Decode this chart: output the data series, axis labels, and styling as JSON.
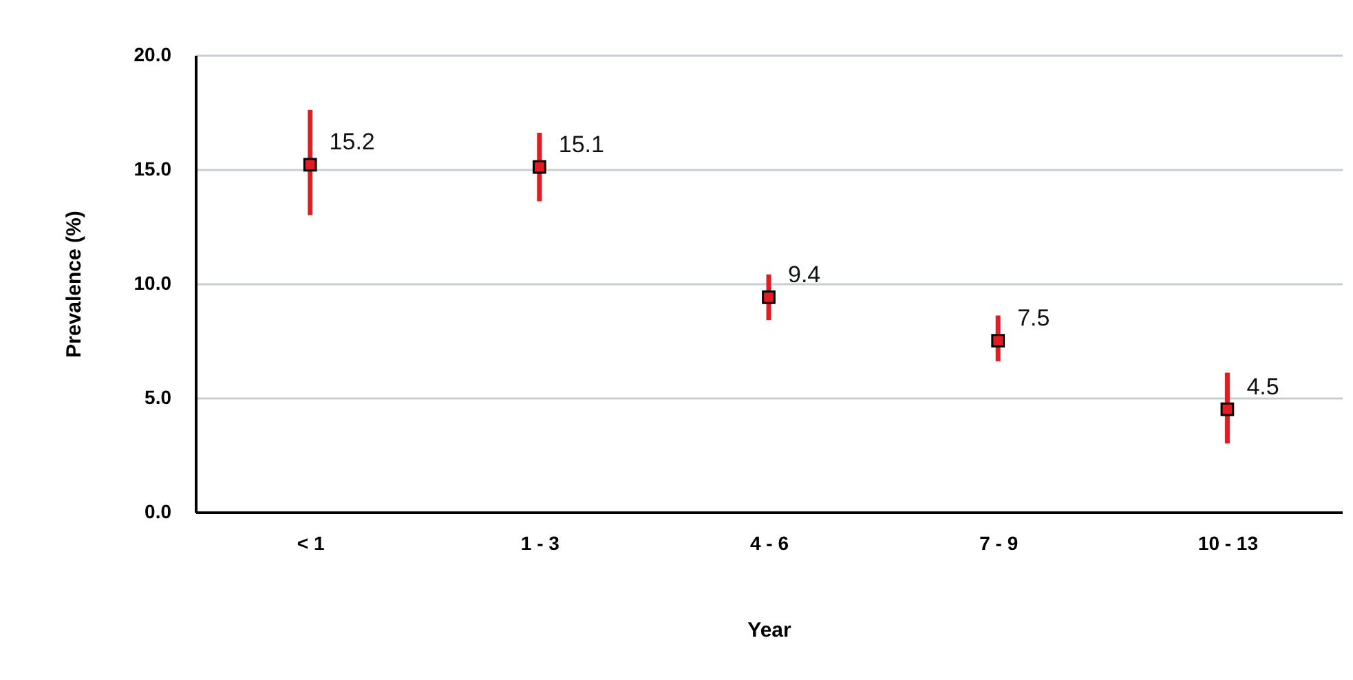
{
  "chart_data": {
    "type": "scatter",
    "xlabel": "Year",
    "ylabel": "Prevalence (%)",
    "categories": [
      "< 1",
      "1 - 3",
      "4 - 6",
      "7 - 9",
      "10 - 13"
    ],
    "values": [
      15.2,
      15.1,
      9.4,
      7.5,
      4.5
    ],
    "errors": [
      [
        13.0,
        17.6
      ],
      [
        13.6,
        16.6
      ],
      [
        8.4,
        10.4
      ],
      [
        6.6,
        8.6
      ],
      [
        3.0,
        6.1
      ]
    ],
    "color": "#e31b23",
    "marker": "square",
    "data_labels": true,
    "ylim": [
      0,
      20
    ],
    "yticks": [
      {
        "value": 0,
        "label": "0.0"
      },
      {
        "value": 5,
        "label": "5.0"
      },
      {
        "value": 10,
        "label": "10.0"
      },
      {
        "value": 15,
        "label": "15.0"
      },
      {
        "value": 20,
        "label": "20.0"
      }
    ],
    "grid": "y"
  }
}
